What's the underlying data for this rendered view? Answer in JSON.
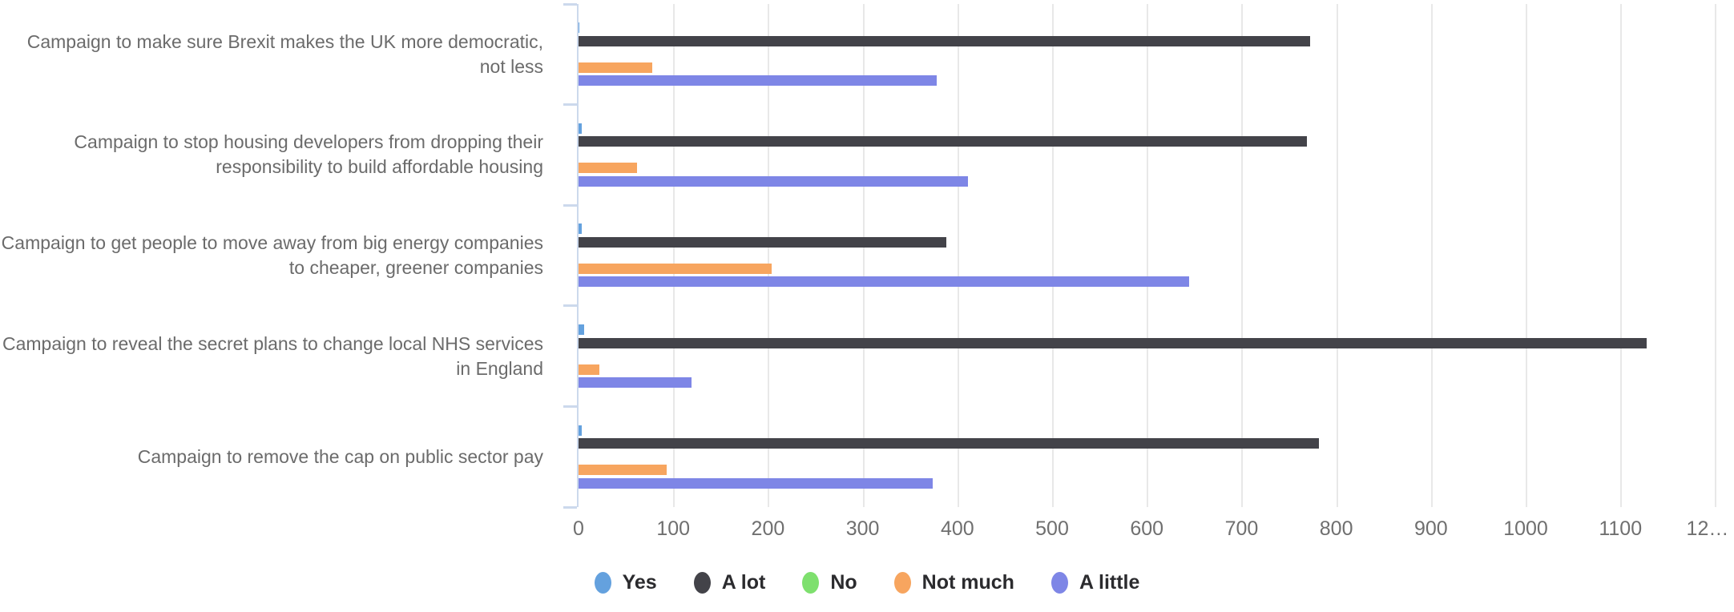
{
  "chart_data": {
    "type": "bar",
    "orientation": "horizontal",
    "title": "",
    "xlabel": "",
    "ylabel": "",
    "grid": true,
    "legend_position": "bottom",
    "axis_color": "#ccd9ec",
    "gridline_color": "#e8e8e8",
    "xlim": [
      0,
      1203
    ],
    "xticks": [
      {
        "value": 0,
        "label": "0"
      },
      {
        "value": 100,
        "label": "100"
      },
      {
        "value": 200,
        "label": "200"
      },
      {
        "value": 300,
        "label": "300"
      },
      {
        "value": 400,
        "label": "400"
      },
      {
        "value": 500,
        "label": "500"
      },
      {
        "value": 600,
        "label": "600"
      },
      {
        "value": 700,
        "label": "700"
      },
      {
        "value": 800,
        "label": "800"
      },
      {
        "value": 900,
        "label": "900"
      },
      {
        "value": 1000,
        "label": "1000"
      },
      {
        "value": 1100,
        "label": "1100"
      },
      {
        "value": 1200,
        "label": "12…"
      }
    ],
    "categories": [
      "Campaign to make sure Brexit makes the UK more democratic, not less",
      "Campaign to stop housing developers from dropping their responsibility to build affordable housing",
      "Campaign to get people to move away from big energy companies to cheaper, greener companies",
      "Campaign to reveal the secret plans to change local NHS services in England",
      "Campaign to remove the cap on public sector pay"
    ],
    "series": [
      {
        "name": "Yes",
        "color": "#64a1de",
        "values": [
          1,
          3,
          3,
          6,
          3
        ]
      },
      {
        "name": "A lot",
        "color": "#434349",
        "values": [
          772,
          769,
          388,
          1128,
          782
        ]
      },
      {
        "name": "No",
        "color": "#7ee06e",
        "values": [
          0,
          0,
          0,
          0,
          0
        ]
      },
      {
        "name": "Not much",
        "color": "#f7a55f",
        "values": [
          78,
          62,
          204,
          22,
          93
        ]
      },
      {
        "name": "A little",
        "color": "#7e86e6",
        "values": [
          378,
          411,
          645,
          119,
          374
        ]
      }
    ]
  }
}
